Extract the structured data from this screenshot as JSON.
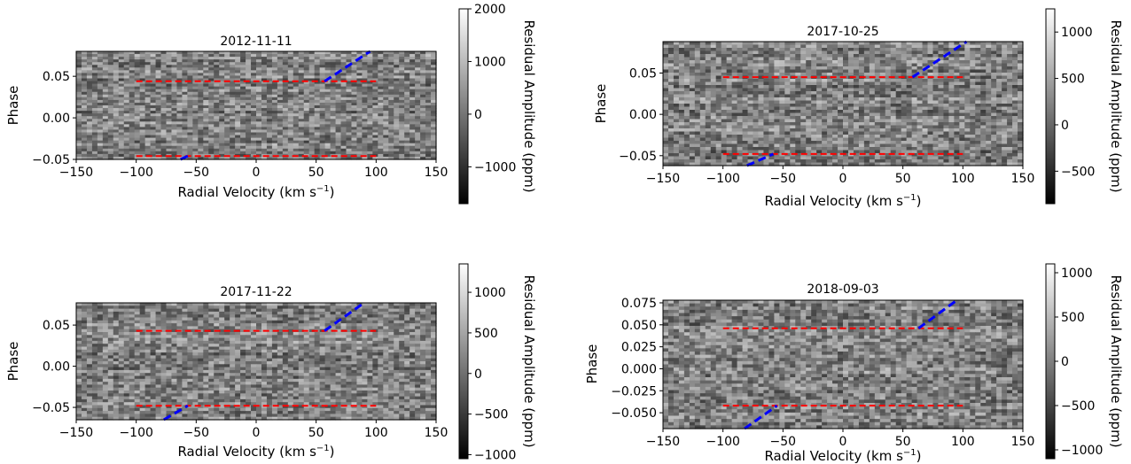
{
  "figure": {
    "panels": [
      {
        "title": "2012-11-11",
        "xlabel": "Radial Velocity (km s",
        "xlabel_sup": "−1",
        "xlabel_close": ")",
        "ylabel": "Phase",
        "xlim": [
          -150,
          150
        ],
        "ylim": [
          -0.05,
          0.08
        ],
        "xticks": [
          -150,
          -100,
          -50,
          0,
          50,
          100,
          150
        ],
        "xtick_labels": [
          "−150",
          "−100",
          "−50",
          "0",
          "50",
          "100",
          "150"
        ],
        "yticks": [
          -0.05,
          0.0,
          0.05
        ],
        "ytick_labels": [
          "−0.05",
          "0.00",
          "0.05"
        ],
        "colorbar": {
          "label": "Residual Amplitude (ppm)",
          "range": [
            -1700,
            2000
          ],
          "ticks": [
            -1000,
            0,
            1000,
            2000
          ],
          "tick_labels": [
            "−1000",
            "0",
            "1000",
            "2000"
          ]
        }
      },
      {
        "title": "2017-10-25",
        "xlabel": "Radial Velocity (km s",
        "xlabel_sup": "−1",
        "xlabel_close": ")",
        "ylabel": "Phase",
        "xlim": [
          -150,
          150
        ],
        "ylim": [
          -0.062,
          0.088
        ],
        "xticks": [
          -150,
          -100,
          -50,
          0,
          50,
          100,
          150
        ],
        "xtick_labels": [
          "−150",
          "−100",
          "−50",
          "0",
          "50",
          "100",
          "150"
        ],
        "yticks": [
          -0.05,
          0.0,
          0.05
        ],
        "ytick_labels": [
          "−0.05",
          "0.00",
          "0.05"
        ],
        "colorbar": {
          "label": "Residual Amplitude (ppm)",
          "range": [
            -850,
            1250
          ],
          "ticks": [
            -500,
            0,
            500,
            1000
          ],
          "tick_labels": [
            "−500",
            "0",
            "500",
            "1000"
          ]
        }
      },
      {
        "title": "2017-11-22",
        "xlabel": "Radial Velocity (km s",
        "xlabel_sup": "−1",
        "xlabel_close": ")",
        "ylabel": "Phase",
        "xlim": [
          -150,
          150
        ],
        "ylim": [
          -0.065,
          0.077
        ],
        "xticks": [
          -150,
          -100,
          -50,
          0,
          50,
          100,
          150
        ],
        "xtick_labels": [
          "−150",
          "−100",
          "−50",
          "0",
          "50",
          "100",
          "150"
        ],
        "yticks": [
          -0.05,
          0.0,
          0.05
        ],
        "ytick_labels": [
          "−0.05",
          "0.00",
          "0.05"
        ],
        "colorbar": {
          "label": "Residual Amplitude (ppm)",
          "range": [
            -1050,
            1350
          ],
          "ticks": [
            -1000,
            -500,
            0,
            500,
            1000
          ],
          "tick_labels": [
            "−1000",
            "−500",
            "0",
            "500",
            "1000"
          ]
        }
      },
      {
        "title": "2018-09-03",
        "xlabel": "Radial Velocity (km s",
        "xlabel_sup": "−1",
        "xlabel_close": ")",
        "ylabel": "Phase",
        "xlim": [
          -150,
          150
        ],
        "ylim": [
          -0.068,
          0.078
        ],
        "xticks": [
          -150,
          -100,
          -50,
          0,
          50,
          100,
          150
        ],
        "xtick_labels": [
          "−150",
          "−100",
          "−50",
          "0",
          "50",
          "100",
          "150"
        ],
        "yticks": [
          -0.05,
          -0.025,
          0.0,
          0.025,
          0.05,
          0.075
        ],
        "ytick_labels": [
          "−0.050",
          "−0.025",
          "0.000",
          "0.025",
          "0.050",
          "0.075"
        ],
        "colorbar": {
          "label": "Residual Amplitude (ppm)",
          "range": [
            -1100,
            1100
          ],
          "ticks": [
            -1000,
            -500,
            0,
            500,
            1000
          ],
          "tick_labels": [
            "−1000",
            "−500",
            "0",
            "500",
            "1000"
          ]
        }
      }
    ]
  },
  "chart_data": [
    {
      "type": "heatmap",
      "title": "2012-11-11",
      "xlabel": "Radial Velocity (km s−1)",
      "ylabel": "Phase",
      "colormap": "gray",
      "xlim": [
        -150,
        150
      ],
      "ylim": [
        -0.05,
        0.08
      ],
      "colorbar_label": "Residual Amplitude (ppm)",
      "colorbar_range": [
        -1700,
        2000
      ],
      "overlays": [
        {
          "color": "#ff0000",
          "style": "dashed",
          "x": [
            -100,
            100
          ],
          "y": [
            0.044,
            0.044
          ]
        },
        {
          "color": "#ff0000",
          "style": "dashed",
          "x": [
            -100,
            100
          ],
          "y": [
            -0.046,
            -0.046
          ]
        },
        {
          "color": "#0000ff",
          "style": "dashed",
          "x": [
            57,
            95
          ],
          "y": [
            0.044,
            0.08
          ]
        },
        {
          "color": "#0000ff",
          "style": "dashed",
          "x": [
            -63,
            -57
          ],
          "y": [
            -0.05,
            -0.046
          ]
        }
      ]
    },
    {
      "type": "heatmap",
      "title": "2017-10-25",
      "xlabel": "Radial Velocity (km s−1)",
      "ylabel": "Phase",
      "colormap": "gray",
      "xlim": [
        -150,
        150
      ],
      "ylim": [
        -0.062,
        0.088
      ],
      "colorbar_label": "Residual Amplitude (ppm)",
      "colorbar_range": [
        -850,
        1250
      ],
      "overlays": [
        {
          "color": "#ff0000",
          "style": "dashed",
          "x": [
            -100,
            100
          ],
          "y": [
            0.045,
            0.045
          ]
        },
        {
          "color": "#ff0000",
          "style": "dashed",
          "x": [
            -100,
            100
          ],
          "y": [
            -0.048,
            -0.048
          ]
        },
        {
          "color": "#0000ff",
          "style": "dashed",
          "x": [
            58,
            103
          ],
          "y": [
            0.045,
            0.088
          ]
        },
        {
          "color": "#0000ff",
          "style": "dashed",
          "x": [
            -80,
            -58
          ],
          "y": [
            -0.062,
            -0.048
          ]
        }
      ]
    },
    {
      "type": "heatmap",
      "title": "2017-11-22",
      "xlabel": "Radial Velocity (km s−1)",
      "ylabel": "Phase",
      "colormap": "gray",
      "xlim": [
        -150,
        150
      ],
      "ylim": [
        -0.065,
        0.077
      ],
      "colorbar_label": "Residual Amplitude (ppm)",
      "colorbar_range": [
        -1050,
        1350
      ],
      "overlays": [
        {
          "color": "#ff0000",
          "style": "dashed",
          "x": [
            -100,
            100
          ],
          "y": [
            0.043,
            0.043
          ]
        },
        {
          "color": "#ff0000",
          "style": "dashed",
          "x": [
            -100,
            100
          ],
          "y": [
            -0.048,
            -0.048
          ]
        },
        {
          "color": "#0000ff",
          "style": "dashed",
          "x": [
            57,
            90
          ],
          "y": [
            0.043,
            0.077
          ]
        },
        {
          "color": "#0000ff",
          "style": "dashed",
          "x": [
            -77,
            -57
          ],
          "y": [
            -0.065,
            -0.048
          ]
        }
      ]
    },
    {
      "type": "heatmap",
      "title": "2018-09-03",
      "xlabel": "Radial Velocity (km s−1)",
      "ylabel": "Phase",
      "colormap": "gray",
      "xlim": [
        -150,
        150
      ],
      "ylim": [
        -0.068,
        0.078
      ],
      "colorbar_label": "Residual Amplitude (ppm)",
      "colorbar_range": [
        -1100,
        1100
      ],
      "overlays": [
        {
          "color": "#ff0000",
          "style": "dashed",
          "x": [
            -100,
            100
          ],
          "y": [
            0.046,
            0.046
          ]
        },
        {
          "color": "#ff0000",
          "style": "dashed",
          "x": [
            -100,
            100
          ],
          "y": [
            -0.042,
            -0.042
          ]
        },
        {
          "color": "#0000ff",
          "style": "dashed",
          "x": [
            63,
            95
          ],
          "y": [
            0.046,
            0.078
          ]
        },
        {
          "color": "#0000ff",
          "style": "dashed",
          "x": [
            -82,
            -55
          ],
          "y": [
            -0.068,
            -0.042
          ]
        }
      ]
    }
  ]
}
